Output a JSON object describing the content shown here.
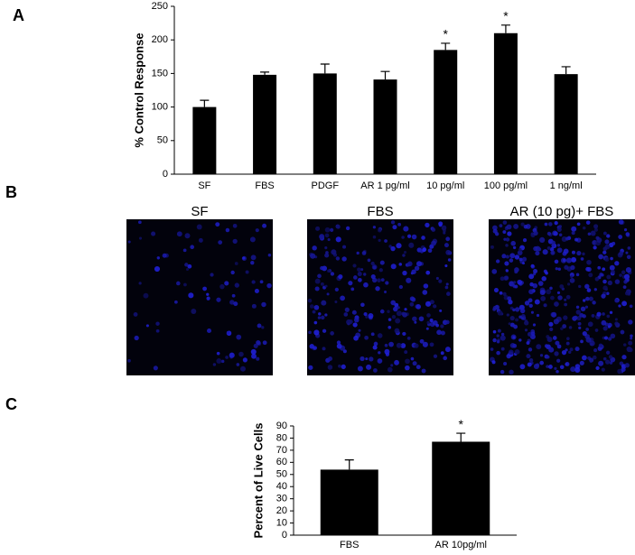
{
  "panel_labels": [
    "A",
    "B",
    "C"
  ],
  "micrographs": {
    "titles": [
      "SF",
      "FBS",
      "AR (10 pg)+ FBS"
    ]
  },
  "chart_data": [
    {
      "type": "bar",
      "ylabel": "% Control Response",
      "categories": [
        "SF",
        "FBS",
        "PDGF",
        "AR 1 pg/ml",
        "10 pg/ml",
        "100 pg/ml",
        "1 ng/ml"
      ],
      "values": [
        100,
        148,
        150,
        141,
        185,
        210,
        149
      ],
      "errors": [
        10,
        4,
        14,
        12,
        10,
        12,
        11
      ],
      "markers": [
        null,
        null,
        null,
        null,
        "*",
        "*",
        null
      ],
      "color": "#000000",
      "ylim": [
        0,
        250
      ],
      "yticks": [
        0,
        50,
        100,
        150,
        200,
        250
      ]
    },
    {
      "type": "bar",
      "ylabel": "Percent of Live Cells",
      "categories": [
        "FBS",
        "AR 10pg/ml"
      ],
      "values": [
        54,
        77
      ],
      "errors": [
        8,
        7
      ],
      "markers": [
        null,
        "*"
      ],
      "color": "#000000",
      "ylim": [
        0,
        90
      ],
      "yticks": [
        0,
        10,
        20,
        30,
        40,
        50,
        60,
        70,
        80,
        90
      ]
    }
  ]
}
